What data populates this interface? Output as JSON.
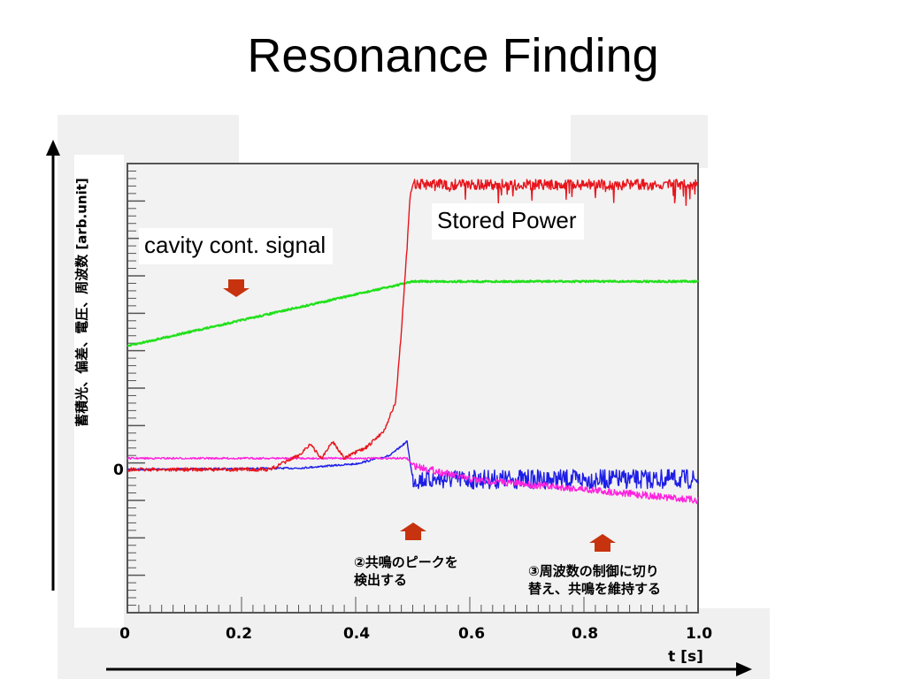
{
  "title": "Resonance Finding",
  "annotations": {
    "cavity_label": "cavity cont. signal",
    "stored_label": "Stored Power",
    "note_peak": "②共鳴のピークを\n検出する",
    "note_switch": "③周波数の制御に切り\n替え、共鳴を維持する"
  },
  "colors": {
    "stored_power": "#e8141b",
    "cavity_signal": "#22e01c",
    "magenta": "#ff22dd",
    "blue": "#1d1de6",
    "arrow": "#c8330f",
    "plot_bg": "#f2f2f2"
  },
  "chart_data": {
    "type": "line",
    "xlabel": "t [s]",
    "ylabel": "蓄積光、偏差、電圧、周波数 [arb.unit]",
    "x_ticks": [
      "0",
      "0.2",
      "0.4",
      "0.6",
      "0.8",
      "1.0"
    ],
    "y_ticks": [
      "0"
    ],
    "xlim": [
      0,
      1.0
    ],
    "ylim": [
      -1.0,
      2.2
    ],
    "grid": false,
    "series": [
      {
        "name": "Stored Power",
        "color": "#e8141b",
        "x": [
          0,
          0.25,
          0.3,
          0.32,
          0.34,
          0.36,
          0.38,
          0.4,
          0.42,
          0.45,
          0.47,
          0.48,
          0.49,
          0.495,
          0.5,
          0.6,
          0.8,
          1.0
        ],
        "y": [
          0.02,
          0.02,
          0.12,
          0.2,
          0.1,
          0.22,
          0.1,
          0.14,
          0.18,
          0.3,
          0.5,
          1.0,
          1.6,
          1.95,
          2.05,
          2.05,
          2.05,
          2.05
        ]
      },
      {
        "name": "cavity cont. signal",
        "color": "#22e01c",
        "x": [
          0,
          0.49,
          0.5,
          0.6,
          0.8,
          1.0
        ],
        "y": [
          0.9,
          1.35,
          1.36,
          1.36,
          1.36,
          1.36
        ]
      },
      {
        "color": "#ff22dd",
        "x": [
          0,
          0.49,
          0.5,
          0.6,
          0.8,
          1.0
        ],
        "y": [
          0.1,
          0.1,
          0.05,
          -0.05,
          -0.12,
          -0.2
        ]
      },
      {
        "color": "#1d1de6",
        "x": [
          0,
          0.3,
          0.4,
          0.46,
          0.49,
          0.5,
          0.6,
          0.8,
          1.0
        ],
        "y": [
          0.02,
          0.03,
          0.06,
          0.12,
          0.22,
          -0.05,
          -0.05,
          -0.05,
          -0.05
        ]
      }
    ]
  }
}
